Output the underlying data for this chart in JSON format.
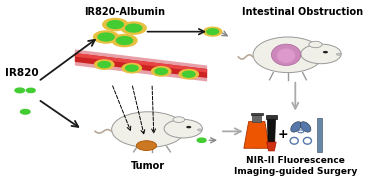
{
  "title_left": "IR820-Albumin",
  "title_right": "Intestinal Obstruction",
  "label_ir820": "IR820",
  "label_tumor": "Tumor",
  "label_surgery": "NIR-II Fluorescence\nImaging-guided Surgery",
  "bg_color": "#ffffff",
  "yellow_color": "#e8c040",
  "arrow_color": "#1a1a1a",
  "gray_arrow_color": "#aaaaaa",
  "dot_green": "#44cc33",
  "blood_vessel_red": "#cc2222",
  "blood_vessel_highlight": "#e84444",
  "blood_vessel_shadow": "#aa1111",
  "blood_vessel_pink": "#e8a0a8",
  "mouse_body": "#f0efe8",
  "mouse_edge": "#999999",
  "intestine_color": "#bb66aa",
  "tumor_color": "#cc7722",
  "tumor_edge": "#aa5500",
  "tail_color": "#b8a898",
  "flask_orange": "#ee5500",
  "flask_glow": "#ff8833",
  "probe_dark": "#222222",
  "probe_tip": "#cc3311",
  "scissors_color": "#5577aa",
  "scalpel_color": "#6688aa",
  "font_size_title": 7.0,
  "font_size_label": 6.5,
  "font_size_ir820": 7.5
}
